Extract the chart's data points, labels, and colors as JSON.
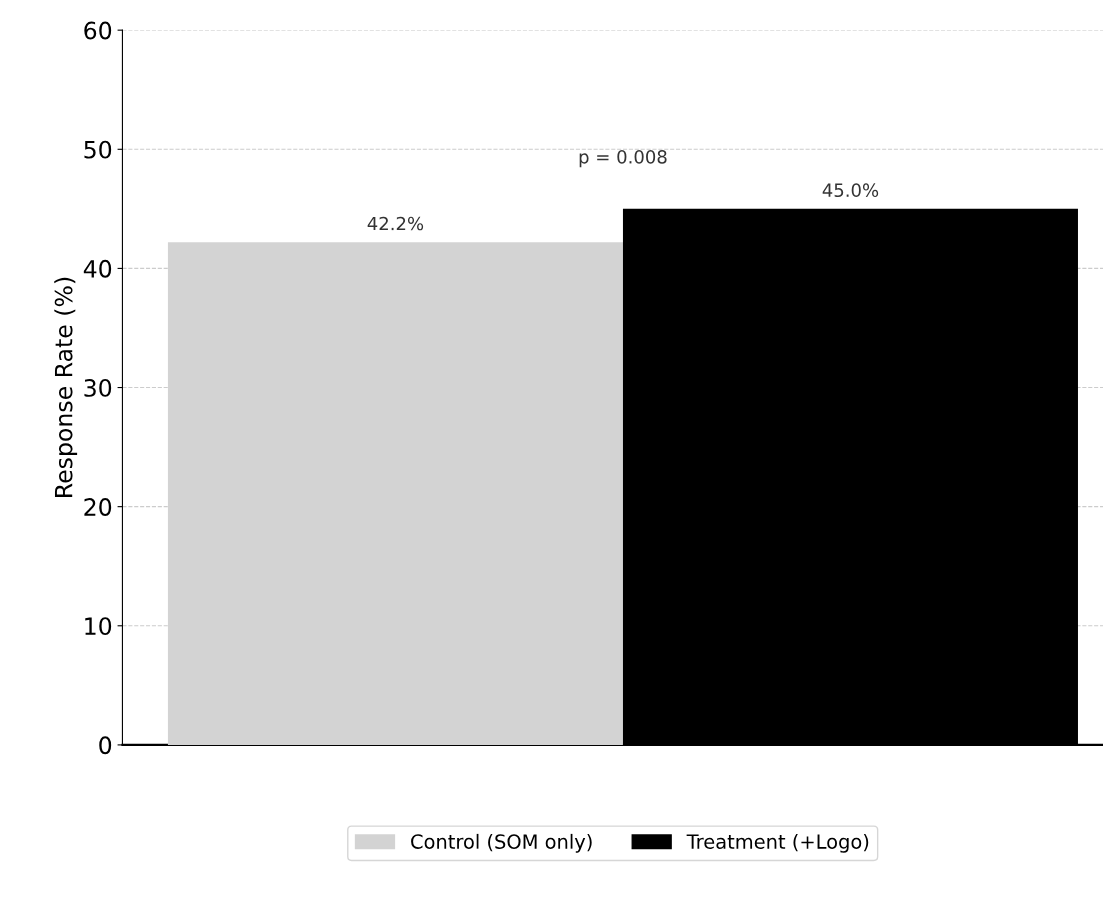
{
  "chart_data": {
    "type": "bar",
    "categories": [
      null
    ],
    "ylabel": "Response Rate (%)",
    "series": [
      {
        "name": "Control (SOM only)",
        "color": "#d3d3d3",
        "values": [
          42.2
        ],
        "value_labels": [
          "42.2%"
        ]
      },
      {
        "name": "Treatment (+Logo)",
        "color": "#000000",
        "values": [
          45.0
        ],
        "value_labels": [
          "45.0%"
        ]
      }
    ],
    "annotations": [
      "p = 0.008"
    ],
    "ylim": [
      0,
      60
    ],
    "yticks": [
      0,
      10,
      20,
      30,
      40,
      50,
      60
    ],
    "grid": "y",
    "line_style": "dashed",
    "legend": "bottom"
  }
}
